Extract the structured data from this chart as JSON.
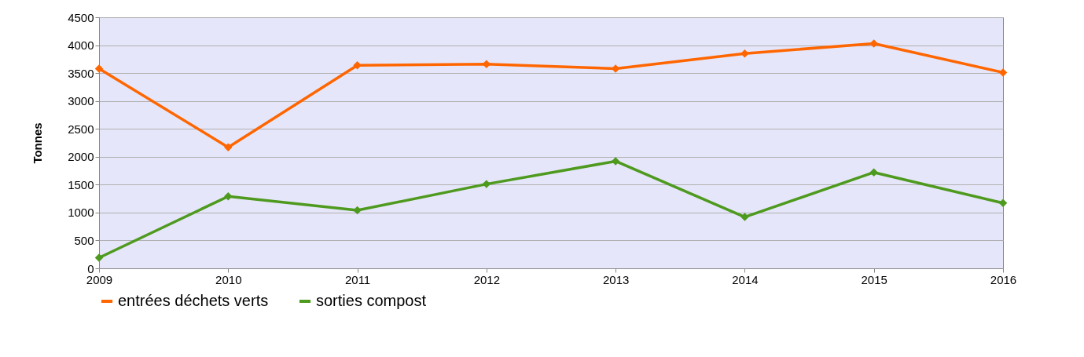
{
  "chart_data": {
    "type": "line",
    "ylabel": "Tonnes",
    "x": [
      2009,
      2010,
      2011,
      2012,
      2013,
      2014,
      2015,
      2016
    ],
    "xlim": [
      2009,
      2016
    ],
    "xticks": [
      2009,
      2010,
      2011,
      2012,
      2013,
      2014,
      2015,
      2016
    ],
    "ylim": [
      0,
      4500
    ],
    "yticks": [
      0,
      500,
      1000,
      1500,
      2000,
      2500,
      3000,
      3500,
      4000,
      4500
    ],
    "series": [
      {
        "name": "entrées déchets verts",
        "color": "#ff6600",
        "values": [
          3580,
          2170,
          3640,
          3660,
          3580,
          3850,
          4030,
          3510
        ]
      },
      {
        "name": "sorties compost",
        "color": "#4e9a1e",
        "values": [
          190,
          1290,
          1040,
          1510,
          1920,
          920,
          1720,
          1170
        ]
      }
    ],
    "grid": "y",
    "legend": "bottom",
    "marker": "diamond",
    "line_style": "solid"
  }
}
